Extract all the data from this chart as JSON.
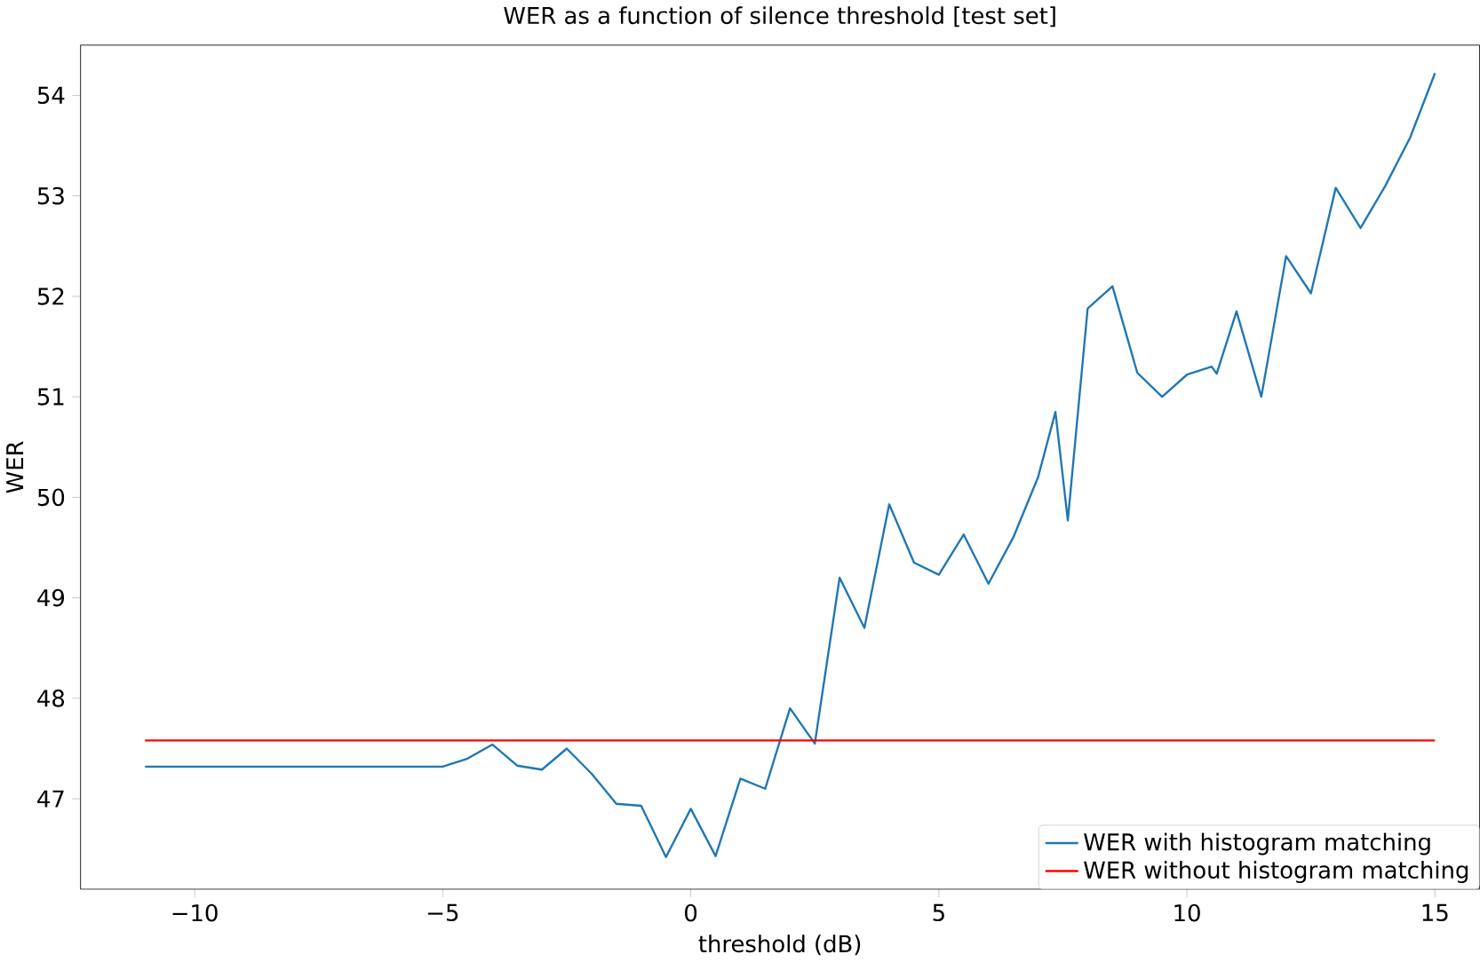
{
  "chart_data": {
    "type": "line",
    "title": "WER as a function of silence threshold [test set]",
    "xlabel": "threshold (dB)",
    "ylabel": "WER",
    "xlim": [
      -12.3,
      15.9
    ],
    "ylim": [
      46.1,
      54.5
    ],
    "xticks": [
      {
        "value": -10,
        "label": "−10"
      },
      {
        "value": -5,
        "label": "−5"
      },
      0,
      5,
      10,
      15
    ],
    "yticks": [
      47,
      48,
      49,
      50,
      51,
      52,
      53,
      54
    ],
    "legend": "bottom right",
    "grid": false,
    "series": [
      {
        "name": "WER with histogram matching",
        "color": "#1f77b4",
        "x": [
          -11,
          -5,
          -4.5,
          -4,
          -3.5,
          -3,
          -2.5,
          -2,
          -1.5,
          -1,
          -0.5,
          0,
          0.5,
          1,
          1.5,
          2,
          2.5,
          3,
          3.5,
          4,
          4.5,
          5,
          5.5,
          6,
          6.5,
          7,
          7.35,
          7.6,
          8,
          8.5,
          9,
          9.5,
          10,
          10.5,
          10.6,
          11,
          11.5,
          12,
          12.5,
          13,
          13.5,
          14,
          14.5,
          15
        ],
        "values": [
          47.32,
          47.32,
          47.4,
          47.54,
          47.33,
          47.29,
          47.5,
          47.25,
          46.95,
          46.93,
          46.42,
          46.9,
          46.43,
          47.2,
          47.1,
          47.9,
          47.55,
          49.2,
          48.7,
          49.93,
          49.35,
          49.23,
          49.63,
          49.14,
          49.6,
          50.2,
          50.85,
          49.77,
          51.88,
          52.1,
          51.24,
          51.0,
          51.22,
          51.3,
          51.23,
          51.85,
          51.0,
          52.4,
          52.03,
          53.08,
          52.68,
          53.1,
          53.58,
          54.22
        ]
      },
      {
        "name": "WER without histogram matching",
        "color": "#ff0000",
        "x": [
          -11,
          15
        ],
        "values": [
          47.58,
          47.58
        ]
      }
    ]
  }
}
